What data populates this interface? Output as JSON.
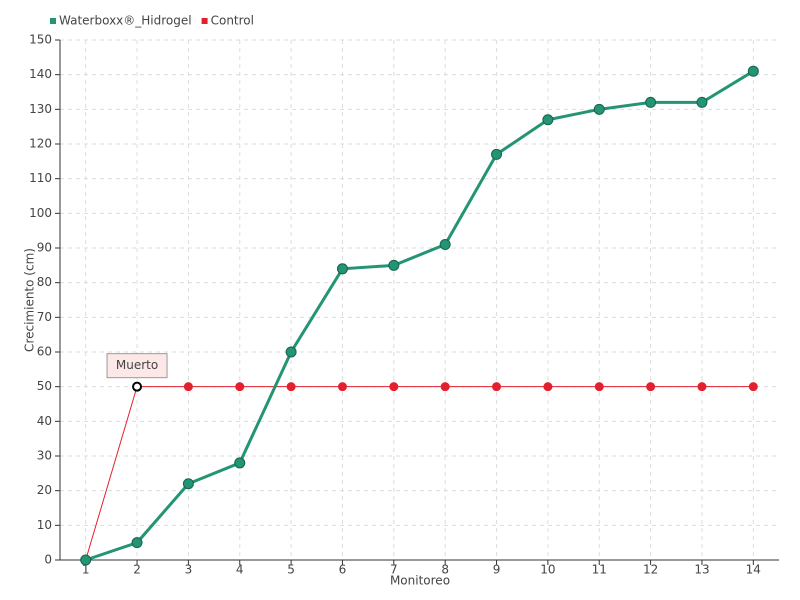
{
  "chart_data": {
    "type": "line",
    "x_label": "Monitoreo",
    "y_label": "Crecimiento (cm)",
    "categories": [
      "1",
      "2",
      "3",
      "4",
      "5",
      "6",
      "7",
      "8",
      "9",
      "10",
      "11",
      "12",
      "13",
      "14"
    ],
    "series": [
      {
        "name": "Waterboxx®_Hidrogel",
        "color": "#239474",
        "values": [
          0,
          5,
          22,
          28,
          60,
          84,
          85,
          91,
          117,
          127,
          130,
          132,
          132,
          141
        ]
      },
      {
        "name": "Control",
        "color": "#e3202e",
        "values": [
          0,
          50,
          50,
          50,
          50,
          50,
          50,
          50,
          50,
          50,
          50,
          50,
          50,
          50
        ]
      }
    ],
    "annotation": "Muerto",
    "ylim": [
      0,
      150
    ],
    "yticks": [
      0,
      10,
      20,
      30,
      40,
      50,
      60,
      70,
      80,
      90,
      100,
      110,
      120,
      130,
      140,
      150
    ],
    "grid": true,
    "legend": "top-left"
  }
}
